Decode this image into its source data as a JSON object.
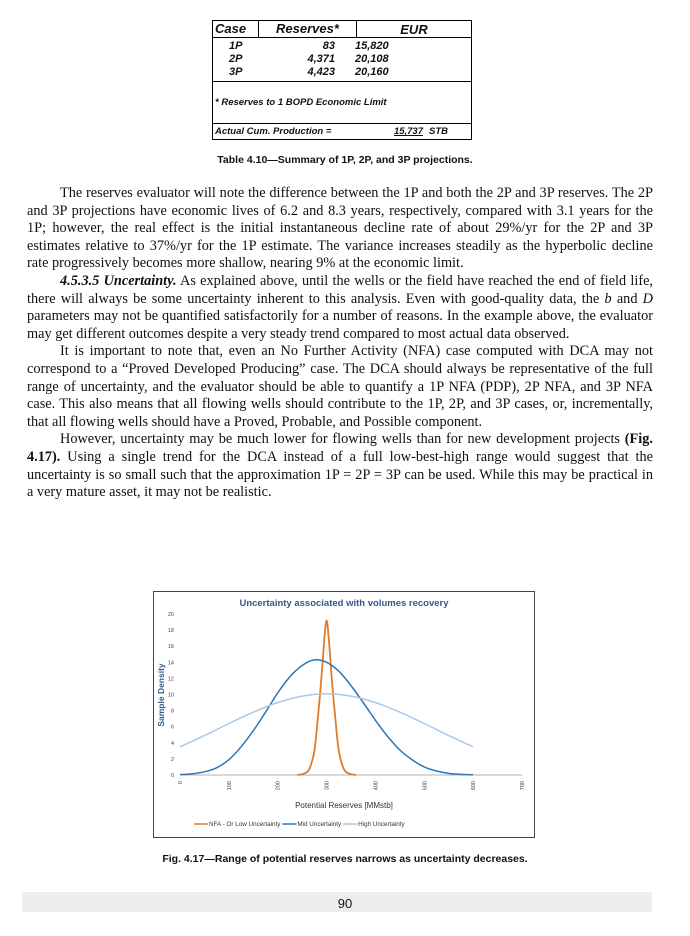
{
  "table": {
    "headers": [
      "Case",
      "Reserves*",
      "EUR"
    ],
    "rows": [
      {
        "case": "1P",
        "reserves": "83",
        "eur": "15,820"
      },
      {
        "case": "2P",
        "reserves": "4,371",
        "eur": "20,108"
      },
      {
        "case": "3P",
        "reserves": "4,423",
        "eur": "20,160"
      }
    ],
    "footnote": "* Reserves to 1 BOPD Economic Limit",
    "cum_label": "Actual Cum. Production =",
    "cum_value": "15,737",
    "cum_unit": "STB"
  },
  "table_caption": "Table 4.10—Summary of 1P, 2P, and 3P projections.",
  "paragraphs": {
    "p1": "The reserves evaluator will note the difference between the 1P and both the 2P and 3P reserves. The 2P and 3P projections have economic lives of 6.2 and 8.3 years, respectively, compared with 3.1 years for the 1P; however, the real effect is the initial instantaneous decline rate of about 29%/yr for the 2P and 3P estimates relative to 37%/yr for the 1P estimate. The variance increases steadily as the hyperbolic decline rate progressively becomes more shallow, nearing 9% at the economic limit.",
    "p2_heading": "4.5.3.5 Uncertainty.",
    "p2_a": " As explained above, until the wells or the field have reached the end of field life, there will always be some uncertainty inherent to this analysis. Even with good-quality data, the ",
    "p2_b": "b",
    "p2_c": " and ",
    "p2_d": "D",
    "p2_e": " parameters may not be quantified satisfactorily for a number of reasons. In the example above, the evaluator may get different outcomes despite a very steady trend compared to most actual data observed.",
    "p3": "It is important to note that, even an No Further Activity (NFA) case computed with DCA may not correspond to a “Proved Developed Producing” case. The DCA should always be representative of the full range of uncertainty, and the evaluator should be able to quantify a 1P NFA (PDP), 2P NFA, and 3P NFA case. This also means that all flowing wells should contribute to the 1P, 2P, and 3P cases, or, incrementally, that all flowing wells should have a Proved, Probable, and Possible component.",
    "p4_a": "However, uncertainty may be much lower for flowing wells than for new development projects ",
    "p4_ref": "(Fig. 4.17).",
    "p4_b": " Using a single trend for the DCA instead of a full low-best-high range would suggest that the uncertainty is so small such that the approximation 1P = 2P = 3P can be used. While this may be practical in a very mature asset, it may not be realistic."
  },
  "chart_data": {
    "type": "line",
    "title": "Uncertainty associated with volumes recovery",
    "xlabel": "Potential Reserves [MMstb]",
    "ylabel": "Sample Density",
    "xlim": [
      0,
      700
    ],
    "ylim": [
      0,
      20
    ],
    "x_ticks": [
      "0",
      "100",
      "200",
      "300",
      "400",
      "500",
      "600",
      "700"
    ],
    "y_ticks": [
      "0",
      "2",
      "4",
      "6",
      "8",
      "10",
      "12",
      "14",
      "16",
      "18",
      "20"
    ],
    "grid": false,
    "legend_position": "bottom",
    "series": [
      {
        "name": "NFA - Or Low Uncertainty",
        "color": "#e07b2a",
        "x": [
          240,
          255,
          265,
          275,
          282,
          288,
          293,
          297,
          300,
          303,
          307,
          312,
          318,
          325,
          335,
          345,
          360
        ],
        "y": [
          0,
          0.2,
          0.8,
          3,
          7,
          11,
          15,
          18,
          19.2,
          18,
          15,
          11,
          7,
          3,
          0.8,
          0.2,
          0
        ]
      },
      {
        "name": "Mid Uncertainty",
        "color": "#2e75b6",
        "x": [
          0,
          25,
          50,
          75,
          100,
          125,
          150,
          175,
          200,
          225,
          250,
          275,
          300,
          325,
          350,
          375,
          400,
          425,
          450,
          475,
          500,
          525,
          550,
          575,
          600
        ],
        "y": [
          0.05,
          0.15,
          0.4,
          0.9,
          1.9,
          3.5,
          5.5,
          7.8,
          10.2,
          12.2,
          13.6,
          14.3,
          14.0,
          12.9,
          11.1,
          9.0,
          6.8,
          4.8,
          3.1,
          1.9,
          1.0,
          0.5,
          0.2,
          0.08,
          0.03
        ]
      },
      {
        "name": "High Uncertainty",
        "color": "#a9c9e6",
        "x": [
          0,
          50,
          100,
          150,
          200,
          250,
          300,
          350,
          400,
          450,
          500,
          550,
          600
        ],
        "y": [
          3.5,
          4.9,
          6.4,
          7.8,
          9.0,
          9.8,
          10.1,
          9.8,
          9.0,
          7.8,
          6.4,
          4.9,
          3.5
        ]
      }
    ]
  },
  "figure_caption": "Fig. 4.17—Range of potential reserves narrows as uncertainty decreases.",
  "page_number": "90"
}
